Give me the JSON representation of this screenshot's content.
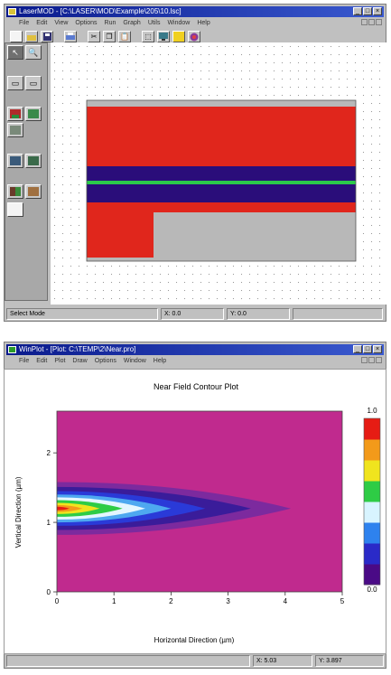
{
  "laser_window": {
    "title": "LaserMOD - [C:\\LASER\\MOD\\Example\\205\\10.lsc]",
    "menu": [
      "File",
      "Edit",
      "View",
      "Options",
      "Run",
      "Graph",
      "Utils",
      "Window",
      "Help"
    ],
    "toolbar_icons": [
      "new-file-icon",
      "open-folder-icon",
      "save-icon",
      "print-icon",
      "cut-icon",
      "copy-icon",
      "paste-icon",
      "select-icon",
      "monitor-icon",
      "run-icon",
      "globe-icon"
    ],
    "side_tools": [
      "pointer-icon",
      "zoom-icon",
      "layer-up-icon",
      "layer-down-icon",
      "region-add-icon",
      "region-edit-icon",
      "material-icon",
      "mesh-icon",
      "electrode-icon",
      "grating-icon",
      "contact-icon",
      "page-icon"
    ],
    "status": {
      "mode": "Select Mode",
      "x": "X: 0.0",
      "y": "Y: 0.0"
    },
    "layers": [
      {
        "name": "top-gray",
        "color": "#b8b8b8"
      },
      {
        "name": "cladding-top",
        "color": "#e0261c"
      },
      {
        "name": "barrier-upper",
        "color": "#2a0d7a"
      },
      {
        "name": "active-well",
        "color": "#2bc94a"
      },
      {
        "name": "barrier-lower",
        "color": "#2a0d7a"
      },
      {
        "name": "cladding-bottom",
        "color": "#e0261c"
      },
      {
        "name": "substrate",
        "color": "#b8b8b8"
      }
    ]
  },
  "winplot_window": {
    "title": "WinPlot - [Plot: C:\\TEMP\\2\\Near.pro]",
    "menu": [
      "File",
      "Edit",
      "Plot",
      "Draw",
      "Options",
      "Window",
      "Help"
    ],
    "status": {
      "x": "X: 5.03",
      "y": "Y: 3.897"
    }
  },
  "chart_data": {
    "type": "heatmap",
    "title": "Near Field Contour Plot",
    "xlabel": "Horizontal Direction (µm)",
    "ylabel": "Vertical Direction (µm)",
    "xlim": [
      0,
      5
    ],
    "ylim": [
      0,
      2.6
    ],
    "x_ticks": [
      "0",
      "1",
      "2",
      "3",
      "4",
      "5"
    ],
    "y_ticks": [
      "0",
      "1",
      "2"
    ],
    "colorbar": {
      "min_label": "0.0",
      "max_label": "1.0",
      "colors": [
        "#4a0a86",
        "#2a2ac8",
        "#2e82ee",
        "#d8f4ff",
        "#2ecc45",
        "#f0e41e",
        "#f39a1a",
        "#e61c14"
      ]
    },
    "field_peak": {
      "x": 0.1,
      "y": 1.2,
      "value": 1.0
    },
    "contour_levels": [
      {
        "value": 0.05,
        "color": "#7c2a9e",
        "x_extent": 4.1,
        "y_halfwidth": 0.38
      },
      {
        "value": 0.15,
        "color": "#3a1c9a",
        "x_extent": 3.4,
        "y_halfwidth": 0.31
      },
      {
        "value": 0.3,
        "color": "#2a3ad8",
        "x_extent": 2.6,
        "y_halfwidth": 0.25
      },
      {
        "value": 0.45,
        "color": "#4ea8f0",
        "x_extent": 2.0,
        "y_halfwidth": 0.2
      },
      {
        "value": 0.55,
        "color": "#e4f6ff",
        "x_extent": 1.55,
        "y_halfwidth": 0.16
      },
      {
        "value": 0.65,
        "color": "#2ecc45",
        "x_extent": 1.15,
        "y_halfwidth": 0.12
      },
      {
        "value": 0.8,
        "color": "#f0e41e",
        "x_extent": 0.75,
        "y_halfwidth": 0.08
      },
      {
        "value": 0.9,
        "color": "#f39a1a",
        "x_extent": 0.45,
        "y_halfwidth": 0.05
      },
      {
        "value": 1.0,
        "color": "#e61c14",
        "x_extent": 0.22,
        "y_halfwidth": 0.025
      }
    ],
    "background_color": "#c02a8e"
  }
}
